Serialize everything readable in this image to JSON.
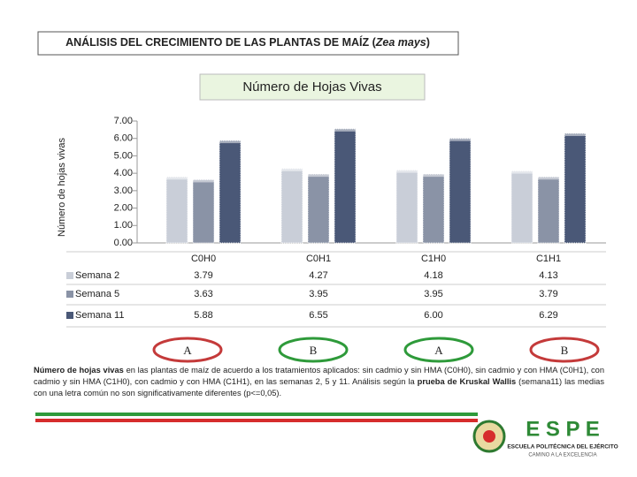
{
  "slide_title": [
    "ANÁLISIS DEL CRECIMIENTO DE LAS PLANTAS DE MAÍZ (",
    "Zea mays",
    ")"
  ],
  "chart_data": {
    "type": "bar",
    "title": "Número de Hojas Vivas",
    "y_label": "Número de hojas vivas",
    "categories": [
      "C0H0",
      "C0H1",
      "C1H0",
      "C1H1"
    ],
    "series": [
      {
        "name": "Semana 2",
        "color": "#c9ced8",
        "values": [
          3.79,
          4.27,
          4.18,
          4.13
        ],
        "value_labels": [
          "3.79",
          "4.27",
          "4.18",
          "4.13"
        ]
      },
      {
        "name": "Semana 5",
        "color": "#8a93a6",
        "values": [
          3.63,
          3.95,
          3.95,
          3.79
        ],
        "value_labels": [
          "3.63",
          "3.95",
          "3.95",
          "3.79"
        ]
      },
      {
        "name": "Semana 11",
        "color": "#4a5877",
        "values": [
          5.88,
          6.55,
          6.0,
          6.29
        ],
        "value_labels": [
          "5.88",
          "6.55",
          "6.00",
          "6.29"
        ]
      }
    ],
    "ylim": [
      0,
      7
    ],
    "yticks": [
      {
        "value": 0,
        "label": "0.00"
      },
      {
        "value": 1,
        "label": "1.00"
      },
      {
        "value": 2,
        "label": "2.00"
      },
      {
        "value": 3,
        "label": "3.00"
      },
      {
        "value": 4,
        "label": "4.00"
      },
      {
        "value": 5,
        "label": "5.00"
      },
      {
        "value": 6,
        "label": "6.00"
      },
      {
        "value": 7,
        "label": "7.00"
      }
    ],
    "letters": [
      "A",
      "B",
      "A",
      "B"
    ]
  },
  "caption": [
    "Número de hojas vivas",
    " en las plantas de maíz de acuerdo a los tratamientos aplicados: sin cadmio y sin HMA (C0H0), sin cadmio y con HMA (C0H1), con cadmio y sin HMA (C1H0), con cadmio y con HMA (C1H1), en las semanas 2, 5 y 11. Análisis según la ",
    "prueba de Kruskal Wallis",
    " (semana11) las medias con una letra común no son significativamente diferentes (p<=0,05)."
  ],
  "logo": {
    "name": "E S P E",
    "line1": "ESCUELA POLITÉCNICA DEL EJÉRCITO",
    "line2": "CAMINO A LA EXCELENCIA"
  }
}
